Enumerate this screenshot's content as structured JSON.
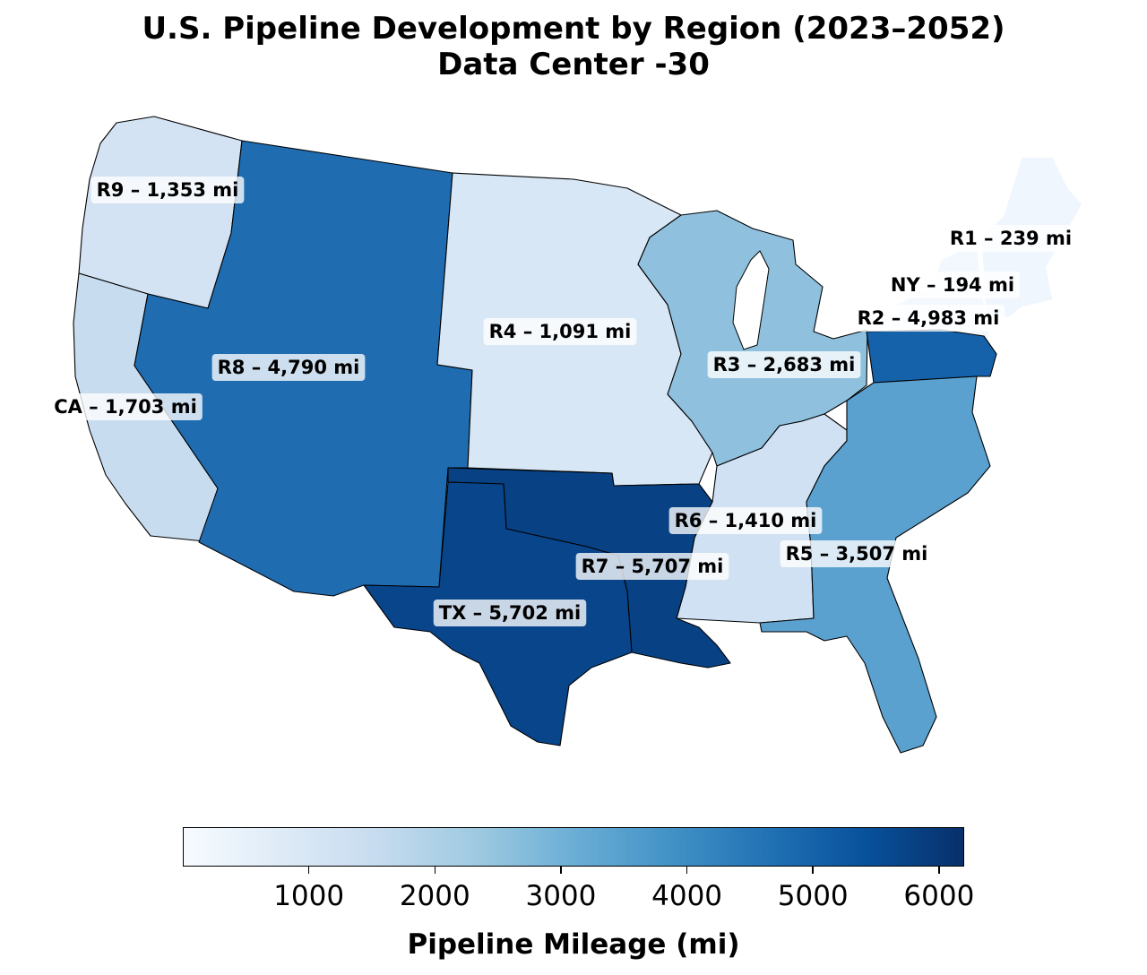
{
  "title": "U.S. Pipeline Development by Region (2023–2052)",
  "subtitle": "Data Center -30",
  "colorbar": {
    "label": "Pipeline Mileage (mi)",
    "min": 0,
    "max": 6200,
    "ticks": [
      1000,
      2000,
      3000,
      4000,
      5000,
      6000
    ],
    "colormap": "Blues"
  },
  "chart_data": {
    "type": "choropleth",
    "unit": "mi",
    "regions": [
      {
        "id": "R9",
        "label": "R9 – 1,353 mi",
        "value": 1353,
        "color": "#d3e3f3"
      },
      {
        "id": "R8",
        "label": "R8 – 4,790 mi",
        "value": 4790,
        "color": "#1f6cb1"
      },
      {
        "id": "R4",
        "label": "R4 – 1,091 mi",
        "value": 1091,
        "color": "#d8e7f5"
      },
      {
        "id": "CA",
        "label": "CA – 1,703 mi",
        "value": 1703,
        "color": "#c8dcef"
      },
      {
        "id": "R3",
        "label": "R3 – 2,683 mi",
        "value": 2683,
        "color": "#8fc1de"
      },
      {
        "id": "R1",
        "label": "R1 – 239 mi",
        "value": 239,
        "color": "#f0f6fd"
      },
      {
        "id": "NY",
        "label": "NY – 194 mi",
        "value": 194,
        "color": "#f2f8fd"
      },
      {
        "id": "R2",
        "label": "R2 – 4,983 mi",
        "value": 4983,
        "color": "#1562ab"
      },
      {
        "id": "R6",
        "label": "R6 – 1,410 mi",
        "value": 1410,
        "color": "#cfe1f2"
      },
      {
        "id": "R5",
        "label": "R5 – 3,507 mi",
        "value": 3507,
        "color": "#5aa1cf"
      },
      {
        "id": "R7",
        "label": "R7 – 5,707 mi",
        "value": 5707,
        "color": "#084285"
      },
      {
        "id": "TX",
        "label": "TX – 5,702 mi",
        "value": 5702,
        "color": "#08458a"
      }
    ]
  }
}
